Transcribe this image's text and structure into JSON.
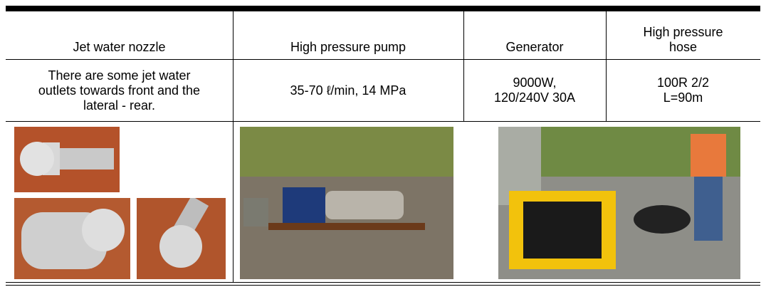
{
  "table": {
    "header": [
      [
        "Jet water nozzle"
      ],
      [
        "High pressure pump"
      ],
      [
        "Generator"
      ],
      [
        "High pressure",
        "hose"
      ]
    ],
    "rows": [
      [
        [
          "There are some jet water",
          "outlets towards front and the",
          "lateral - rear."
        ],
        [
          "35-70 ℓ/min, 14 MPa"
        ],
        [
          "9000W,",
          "120/240V 30A"
        ],
        [
          "100R 2/2",
          "L=90m"
        ]
      ]
    ]
  }
}
